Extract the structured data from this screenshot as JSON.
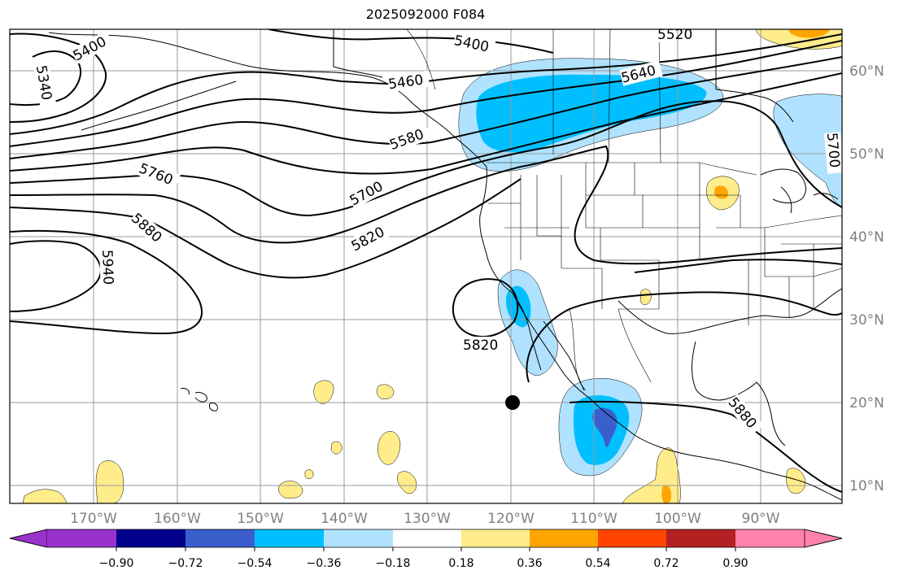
{
  "title": "2025092000 F084",
  "map": {
    "lat_labels": [
      "60°N",
      "50°N",
      "40°N",
      "30°N",
      "20°N",
      "10°N"
    ],
    "lon_labels": [
      "170°W",
      "160°W",
      "150°W",
      "140°W",
      "130°W",
      "120°W",
      "110°W",
      "100°W",
      "90°W"
    ],
    "contour_labels": [
      "5400",
      "5400",
      "5340",
      "5460",
      "5520",
      "5580",
      "5640",
      "5700",
      "5700",
      "5760",
      "5820",
      "5820",
      "5880",
      "5880",
      "5940"
    ],
    "marker_location": {
      "lon": -120,
      "lat": 20
    },
    "colors": {
      "frame": "#000000",
      "grid": "#9a9a9a",
      "coast": "#000000"
    }
  },
  "colorbar": {
    "labels": [
      "−0.90",
      "−0.72",
      "−0.54",
      "−0.36",
      "−0.18",
      "0.18",
      "0.36",
      "0.54",
      "0.72",
      "0.90"
    ],
    "colors": [
      "#9932cc",
      "#00008b",
      "#3a5fcd",
      "#00bfff",
      "#b0e2ff",
      "#ffffff",
      "#ffec8b",
      "#ffa500",
      "#ff4500",
      "#b22222",
      "#ff82ab"
    ]
  }
}
